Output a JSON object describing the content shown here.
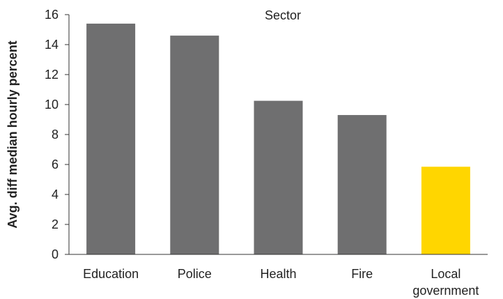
{
  "chart_data": {
    "type": "bar",
    "title": "Sector",
    "xlabel": "",
    "ylabel": "Avg. diff median hourly percent",
    "categories": [
      "Education",
      "Police",
      "Health",
      "Fire",
      "Local government"
    ],
    "category_label_lines": [
      [
        "Education"
      ],
      [
        "Police"
      ],
      [
        "Health"
      ],
      [
        "Fire"
      ],
      [
        "Local",
        "government"
      ]
    ],
    "values": [
      15.4,
      14.6,
      10.25,
      9.3,
      5.85
    ],
    "ylim": [
      0,
      16
    ],
    "yticks": [
      0,
      2,
      4,
      6,
      8,
      10,
      12,
      14,
      16
    ],
    "grid": false,
    "legend": "none",
    "colors": {
      "default_bar": "#6f6f70",
      "highlight_bar": "#ffd600",
      "axis": "#333333",
      "text": "#222222"
    },
    "highlight_index": 4
  }
}
